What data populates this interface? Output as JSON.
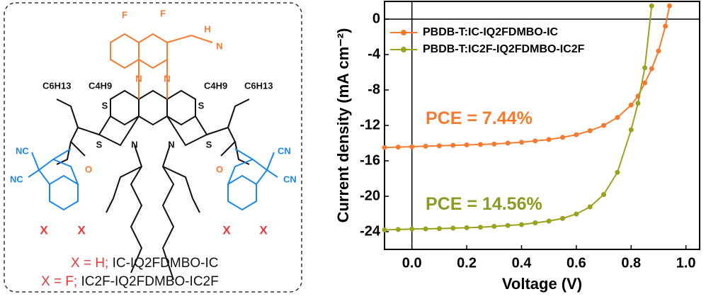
{
  "structure": {
    "labels": [
      "F",
      "F",
      "H",
      "N",
      "N",
      "N",
      "C6H13",
      "C4H9",
      "C4H9",
      "C6H13",
      "S",
      "S",
      "S",
      "S",
      "N",
      "N",
      "NC",
      "NC",
      "O",
      "O",
      "CN",
      "CN",
      "X",
      "X",
      "X",
      "X"
    ],
    "captions": [
      {
        "key": "X = H;",
        "name": "IC-IQ2FDMBO-IC"
      },
      {
        "key": "X = F;",
        "name": "IC2F-IQ2FDMBO-IC2F"
      }
    ]
  },
  "chart_data": {
    "type": "line",
    "x_label": "Voltage (V)",
    "y_label": "Current density (mA cm⁻²)",
    "xlim": [
      -0.1,
      1.05
    ],
    "ylim": [
      -26,
      2
    ],
    "xticks": [
      {
        "value": 0,
        "label": "0.0"
      },
      {
        "value": 0.2,
        "label": "0.2"
      },
      {
        "value": 0.4,
        "label": "0.4"
      },
      {
        "value": 0.6,
        "label": "0.6"
      },
      {
        "value": 0.8,
        "label": "0.8"
      },
      {
        "value": 1,
        "label": "1.0"
      }
    ],
    "yticks": [
      0,
      -4,
      -8,
      -12,
      -16,
      -20,
      -24
    ],
    "legend": "upper left",
    "x": [
      -0.1,
      -0.05,
      0,
      0.05,
      0.1,
      0.15,
      0.2,
      0.25,
      0.3,
      0.35,
      0.4,
      0.45,
      0.5,
      0.55,
      0.6,
      0.65,
      0.7,
      0.75,
      0.8,
      0.825,
      0.85,
      0.875,
      0.9,
      0.925,
      0.94
    ],
    "series": [
      {
        "name": "PBDB-T:IC-IQ2FDMBO-IC",
        "color": "#f47b30",
        "values": [
          -14.5,
          -14.45,
          -14.4,
          -14.35,
          -14.3,
          -14.25,
          -14.2,
          -14.15,
          -14.1,
          -14.0,
          -13.9,
          -13.75,
          -13.6,
          -13.35,
          -13.05,
          -12.6,
          -12.0,
          -11.1,
          -9.7,
          -8.7,
          -7.2,
          -5.6,
          -3.6,
          -0.8,
          1.5
        ]
      },
      {
        "name": "PBDB-T:IC2F-IQ2FDMBO-IC2F",
        "color": "#9aa21e",
        "values": [
          -23.8,
          -23.75,
          -23.7,
          -23.68,
          -23.65,
          -23.6,
          -23.55,
          -23.5,
          -23.4,
          -23.3,
          -23.2,
          -23.0,
          -22.8,
          -22.5,
          -22.0,
          -21.2,
          -19.8,
          -17.3,
          -12.5,
          -9.5,
          -5.5,
          1.5,
          null,
          null,
          null
        ]
      }
    ],
    "annotations": [
      {
        "text": "PCE = 7.44%",
        "x": 0.05,
        "y": -11.3,
        "color": "#f47b30"
      },
      {
        "text": "PCE = 14.56%",
        "x": 0.05,
        "y": -21.0,
        "color": "#8c9a1f"
      }
    ]
  }
}
